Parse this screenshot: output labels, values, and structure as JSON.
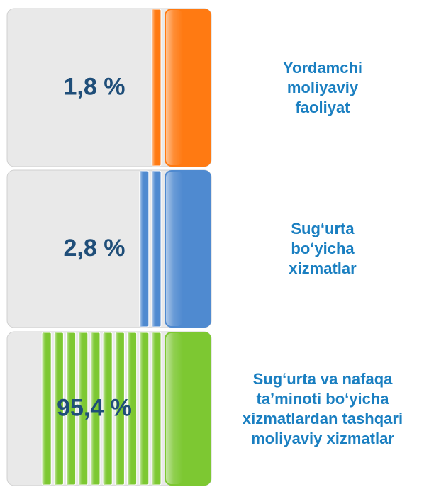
{
  "chart_data": {
    "type": "bar",
    "categories": [
      "Yordamchi moliyaviy faoliyat",
      "Sug‘urta bo‘yicha xizmatlar",
      "Sug‘urta va nafaqa ta’minoti bo‘yicha xizmatlardan tashqari moliyaviy xizmatlar"
    ],
    "values": [
      1.8,
      2.8,
      95.4
    ],
    "value_labels": [
      "1,8 %",
      "2,8 %",
      "95,4 %"
    ],
    "colors": [
      "#ff7a12",
      "#4f8ad0",
      "#7dc832"
    ]
  }
}
